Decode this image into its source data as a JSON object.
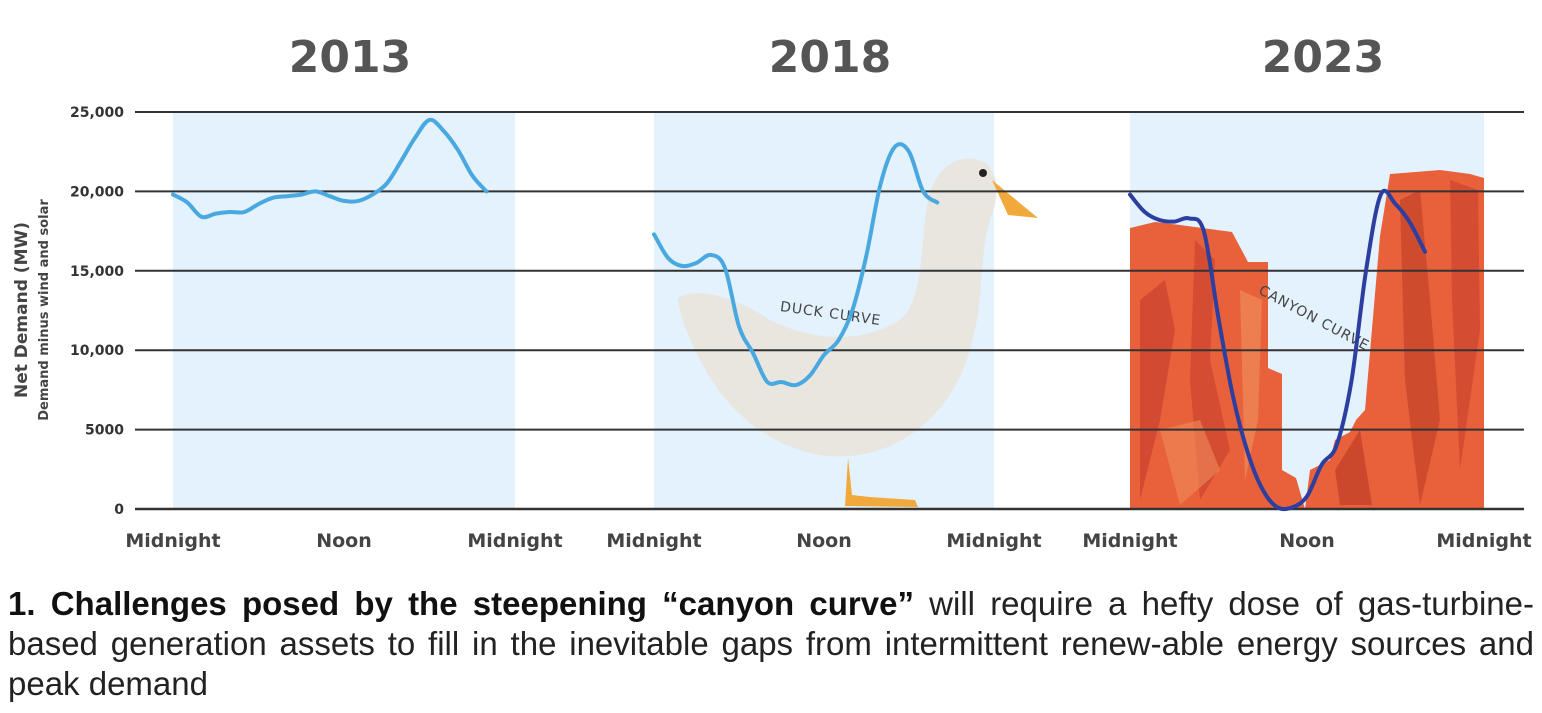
{
  "chart_data": {
    "type": "line",
    "ylabel": "Net Demand (MW)",
    "ylabel_sub": "Demand minus wind and solar",
    "ylim": [
      0,
      25000
    ],
    "yticks": [
      "25,000",
      "20,000",
      "15,000",
      "10,000",
      "5000",
      "0"
    ],
    "ytick_values": [
      25000,
      20000,
      15000,
      10000,
      5000,
      0
    ],
    "grid": true,
    "panels": [
      {
        "title": "2013",
        "x_ticks": [
          "Midnight",
          "Noon",
          "Midnight"
        ],
        "x_hours": [
          0,
          1,
          2,
          3,
          4,
          5,
          6,
          7,
          8,
          9,
          10,
          11,
          12,
          13,
          14,
          15,
          16,
          17,
          18,
          19,
          20,
          21,
          22,
          23,
          24
        ],
        "values": [
          19800,
          19300,
          18400,
          18600,
          18700,
          18700,
          19200,
          19600,
          19700,
          19800,
          20000,
          19700,
          19400,
          19400,
          19800,
          20500,
          21900,
          23400,
          24500,
          23800,
          22600,
          21000,
          20000,
          null,
          null
        ],
        "line_color": "#4aa8e0"
      },
      {
        "title": "2018",
        "x_ticks": [
          "Midnight",
          "Noon",
          "Midnight"
        ],
        "x_hours": [
          0,
          1,
          2,
          3,
          4,
          5,
          6,
          7,
          8,
          9,
          10,
          11,
          12,
          13,
          14,
          15,
          16,
          17,
          18,
          19,
          20,
          21,
          22,
          23,
          24
        ],
        "values": [
          17300,
          15800,
          15300,
          15500,
          16000,
          15200,
          11500,
          9800,
          8000,
          8000,
          7800,
          8400,
          9700,
          10600,
          12500,
          16000,
          20500,
          22800,
          22500,
          20000,
          19300,
          null,
          null,
          null,
          null
        ],
        "curve_label": "DUCK CURVE",
        "line_color": "#4aa8e0"
      },
      {
        "title": "2023",
        "x_ticks": [
          "Midnight",
          "Noon",
          "Midnight"
        ],
        "x_hours": [
          0,
          1,
          2,
          3,
          4,
          5,
          6,
          7,
          8,
          9,
          10,
          11,
          12,
          13,
          14,
          15,
          16,
          17,
          18,
          19,
          20,
          21,
          22,
          23,
          24
        ],
        "values": [
          19800,
          18700,
          18200,
          18100,
          18300,
          17500,
          12000,
          7000,
          3500,
          1200,
          100,
          100,
          800,
          2800,
          4000,
          8000,
          15000,
          19800,
          19200,
          18000,
          16200,
          null,
          null,
          null,
          null
        ],
        "curve_label": "CANYON CURVE",
        "line_color": "#2c3fa0"
      }
    ]
  },
  "caption": {
    "bold": "1. Challenges posed by the steepening “canyon curve”",
    "rest": " will require a hefty dose of gas-turbine-based generation assets to fill in the inevitable gaps from intermittent renew-able energy sources and peak demand"
  },
  "colors": {
    "day_band": "#e3f2fc",
    "grid": "#333333",
    "duck_body": "#e9e6e0",
    "duck_beak": "#f2a93b",
    "canyon_rock": "#e8613a"
  }
}
